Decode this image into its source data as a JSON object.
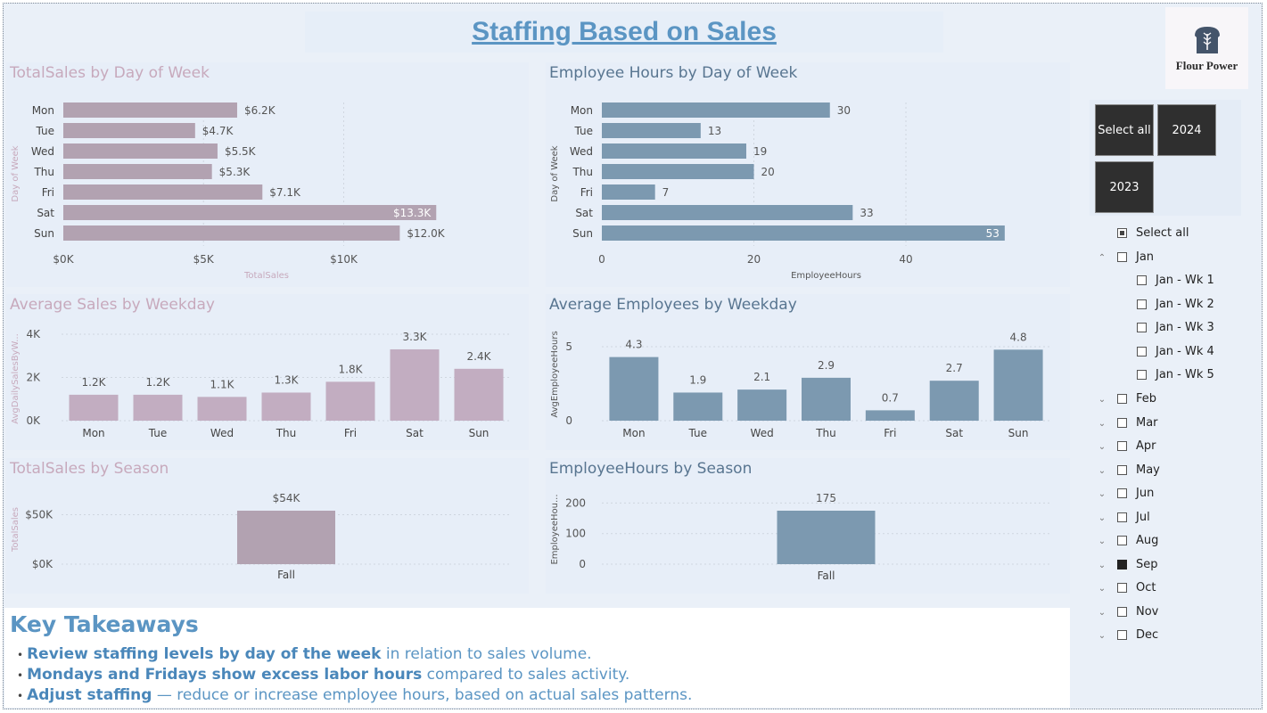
{
  "page": {
    "title": "Staffing Based on Sales"
  },
  "logo": {
    "text": "Flour Power"
  },
  "panels": {
    "sales_by_day": {
      "title": "TotalSales by Day of Week",
      "ylabel": "Day of Week",
      "xlabel": "TotalSales"
    },
    "hours_by_day": {
      "title": "Employee Hours by Day of Week",
      "ylabel": "Day of Week",
      "xlabel": "EmployeeHours"
    },
    "avg_sales": {
      "title": "Average Sales by Weekday",
      "ylabel": "AvgDailySalesByW..."
    },
    "avg_emp": {
      "title": "Average Employees by Weekday",
      "ylabel": "AvgEmployeeHours"
    },
    "sales_season": {
      "title": "TotalSales by Season",
      "ylabel": "TotalSales"
    },
    "hours_season": {
      "title": "EmployeeHours by Season",
      "ylabel": "EmployeeHou..."
    }
  },
  "chart_data": [
    {
      "id": "sales_by_day",
      "type": "bar",
      "orientation": "horizontal",
      "title": "TotalSales by Day of Week",
      "categories": [
        "Mon",
        "Tue",
        "Wed",
        "Thu",
        "Fri",
        "Sat",
        "Sun"
      ],
      "values": [
        6200,
        4700,
        5500,
        5300,
        7100,
        13300,
        12000
      ],
      "labels": [
        "$6.2K",
        "$4.7K",
        "$5.5K",
        "$5.3K",
        "$7.1K",
        "$13.3K",
        "$12.0K"
      ],
      "ticks": [
        0,
        5000,
        10000
      ],
      "tick_labels": [
        "$0K",
        "$5K",
        "$10K"
      ],
      "xlim": [
        0,
        14500
      ],
      "xlabel": "TotalSales",
      "ylabel": "Day of Week",
      "color": "#b2a2b1"
    },
    {
      "id": "hours_by_day",
      "type": "bar",
      "orientation": "horizontal",
      "title": "Employee Hours by Day of Week",
      "categories": [
        "Mon",
        "Tue",
        "Wed",
        "Thu",
        "Fri",
        "Sat",
        "Sun"
      ],
      "values": [
        30,
        13,
        19,
        20,
        7,
        33,
        53
      ],
      "labels": [
        "30",
        "13",
        "19",
        "20",
        "7",
        "33",
        "53"
      ],
      "ticks": [
        0,
        20,
        40
      ],
      "tick_labels": [
        "0",
        "20",
        "40"
      ],
      "xlim": [
        0,
        59
      ],
      "xlabel": "EmployeeHours",
      "ylabel": "Day of Week",
      "color": "#7c99b0"
    },
    {
      "id": "avg_sales",
      "type": "bar",
      "orientation": "vertical",
      "title": "Average Sales by Weekday",
      "categories": [
        "Mon",
        "Tue",
        "Wed",
        "Thu",
        "Fri",
        "Sat",
        "Sun"
      ],
      "values": [
        1200,
        1200,
        1100,
        1300,
        1800,
        3300,
        2400
      ],
      "labels": [
        "1.2K",
        "1.2K",
        "1.1K",
        "1.3K",
        "1.8K",
        "3.3K",
        "2.4K"
      ],
      "ticks": [
        0,
        2000,
        4000
      ],
      "tick_labels": [
        "0K",
        "2K",
        "4K"
      ],
      "ylim": [
        0,
        4000
      ],
      "ylabel": "AvgDailySalesByW...",
      "color": "#c2adc1"
    },
    {
      "id": "avg_emp",
      "type": "bar",
      "orientation": "vertical",
      "title": "Average Employees by Weekday",
      "categories": [
        "Mon",
        "Tue",
        "Wed",
        "Thu",
        "Fri",
        "Sat",
        "Sun"
      ],
      "values": [
        4.3,
        1.9,
        2.1,
        2.9,
        0.7,
        2.7,
        4.8
      ],
      "labels": [
        "4.3",
        "1.9",
        "2.1",
        "2.9",
        "0.7",
        "2.7",
        "4.8"
      ],
      "ticks": [
        0,
        5
      ],
      "tick_labels": [
        "0",
        "5"
      ],
      "ylim": [
        0,
        5
      ],
      "ylabel": "AvgEmployeeHours",
      "color": "#7c99b0"
    },
    {
      "id": "sales_season",
      "type": "bar",
      "orientation": "vertical",
      "title": "TotalSales by Season",
      "categories": [
        "Fall"
      ],
      "values": [
        54000
      ],
      "labels": [
        "$54K"
      ],
      "ticks": [
        0,
        50000
      ],
      "tick_labels": [
        "$0K",
        "$50K"
      ],
      "ylim": [
        0,
        54000
      ],
      "ylabel": "TotalSales",
      "color": "#b2a2b1"
    },
    {
      "id": "hours_season",
      "type": "bar",
      "orientation": "vertical",
      "title": "EmployeeHours by Season",
      "categories": [
        "Fall"
      ],
      "values": [
        175
      ],
      "labels": [
        "175"
      ],
      "ticks": [
        0,
        100,
        200
      ],
      "tick_labels": [
        "0",
        "100",
        "200"
      ],
      "ylim": [
        0,
        175
      ],
      "ylabel": "EmployeeHou...",
      "color": "#7c99b0"
    }
  ],
  "year_slicer": {
    "buttons": [
      {
        "label": "Select all",
        "selected": true
      },
      {
        "label": "2024",
        "selected": true
      },
      {
        "label": "2023",
        "selected": true
      }
    ]
  },
  "month_slicer": {
    "select_all": "Select all",
    "months": [
      {
        "label": "Jan",
        "expanded": true,
        "checked": false,
        "weeks": [
          "Jan - Wk 1",
          "Jan - Wk 2",
          "Jan - Wk 3",
          "Jan - Wk 4",
          "Jan - Wk 5"
        ]
      },
      {
        "label": "Feb",
        "checked": false
      },
      {
        "label": "Mar",
        "checked": false
      },
      {
        "label": "Apr",
        "checked": false
      },
      {
        "label": "May",
        "checked": false
      },
      {
        "label": "Jun",
        "checked": false
      },
      {
        "label": "Jul",
        "checked": false
      },
      {
        "label": "Aug",
        "checked": false
      },
      {
        "label": "Sep",
        "checked": true
      },
      {
        "label": "Oct",
        "checked": false
      },
      {
        "label": "Nov",
        "checked": false
      },
      {
        "label": "Dec",
        "checked": false
      }
    ]
  },
  "takeaways": {
    "title": "Key Takeaways",
    "lines": [
      {
        "bold": "Review staffing levels by day of the week",
        "rest": " in relation to sales volume."
      },
      {
        "bold": "Mondays and Fridays show excess labor hours",
        "rest": " compared to sales activity."
      },
      {
        "bold": "Adjust staffing",
        "rest": " — reduce or increase employee hours, based on actual sales patterns."
      }
    ]
  },
  "colors": {
    "title": "#5b95c3",
    "pink_bar": "#b2a2b1",
    "blue_bar": "#7c99b0",
    "pink_title": "#c7a9bc",
    "blue_title": "#587590"
  }
}
